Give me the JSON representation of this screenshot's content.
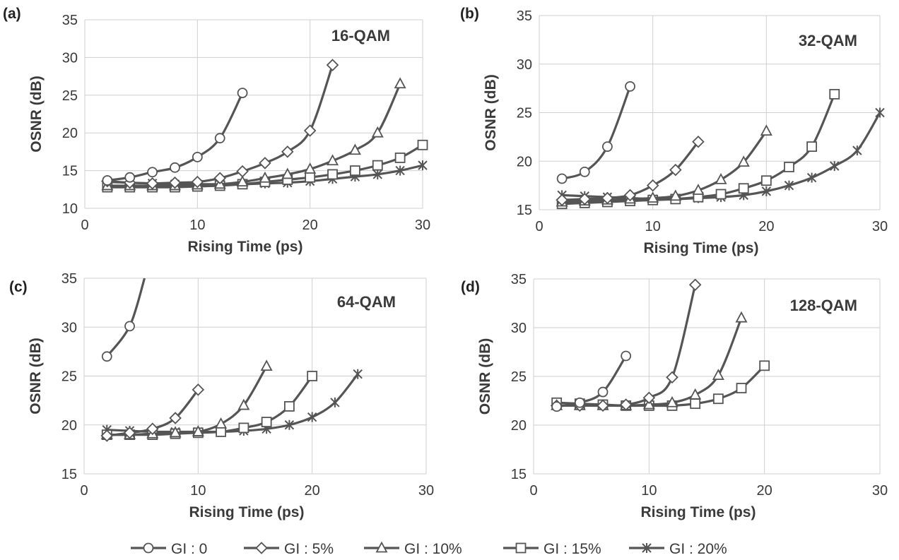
{
  "chart_data": [
    {
      "type": "line",
      "panel": "(a)",
      "title": "16-QAM",
      "xlabel": "Rising Time (ps)",
      "ylabel": "OSNR (dB)",
      "xlim": [
        0,
        30
      ],
      "ylim": [
        10,
        35
      ],
      "xticks": [
        0,
        10,
        20,
        30
      ],
      "yticks": [
        10,
        15,
        20,
        25,
        30,
        35
      ],
      "grid": true,
      "series": [
        {
          "name": "GI : 0",
          "marker": "circle",
          "x": [
            2,
            4,
            6,
            8,
            10,
            12,
            14
          ],
          "y": [
            13.7,
            14.1,
            14.8,
            15.4,
            16.8,
            19.3,
            25.3
          ]
        },
        {
          "name": "GI : 5%",
          "marker": "diamond",
          "x": [
            2,
            4,
            6,
            8,
            10,
            12,
            14,
            16,
            18,
            20,
            22
          ],
          "y": [
            13.6,
            13.4,
            13.3,
            13.4,
            13.5,
            14.0,
            14.9,
            16.0,
            17.5,
            20.3,
            29.0
          ]
        },
        {
          "name": "GI : 10%",
          "marker": "triangle",
          "x": [
            2,
            4,
            6,
            8,
            10,
            12,
            14,
            16,
            18,
            20,
            22,
            24,
            26,
            28
          ],
          "y": [
            13.0,
            13.0,
            13.0,
            13.0,
            13.1,
            13.2,
            13.5,
            14.0,
            14.5,
            15.2,
            16.3,
            17.7,
            20.0,
            26.5
          ]
        },
        {
          "name": "GI : 15%",
          "marker": "square",
          "x": [
            2,
            4,
            6,
            8,
            10,
            12,
            14,
            16,
            18,
            20,
            22,
            24,
            26,
            28,
            30
          ],
          "y": [
            12.8,
            12.8,
            12.8,
            12.8,
            12.9,
            13.0,
            13.2,
            13.5,
            13.8,
            14.1,
            14.5,
            15.0,
            15.7,
            16.7,
            18.4
          ]
        },
        {
          "name": "GI : 20%",
          "marker": "star",
          "x": [
            2,
            4,
            6,
            8,
            10,
            12,
            14,
            16,
            18,
            20,
            22,
            24,
            26,
            28,
            30
          ],
          "y": [
            13.5,
            13.4,
            13.3,
            13.2,
            13.2,
            13.2,
            13.2,
            13.3,
            13.4,
            13.6,
            13.9,
            14.2,
            14.5,
            15.0,
            15.7
          ]
        }
      ]
    },
    {
      "type": "line",
      "panel": "(b)",
      "title": "32-QAM",
      "xlabel": "Rising Time (ps)",
      "ylabel": "OSNR (dB)",
      "xlim": [
        0,
        30
      ],
      "ylim": [
        15,
        35
      ],
      "xticks": [
        0,
        10,
        20,
        30
      ],
      "yticks": [
        15,
        20,
        25,
        30,
        35
      ],
      "grid": true,
      "series": [
        {
          "name": "GI : 0",
          "marker": "circle",
          "x": [
            2,
            4,
            6,
            8
          ],
          "y": [
            18.2,
            18.9,
            21.5,
            27.7
          ]
        },
        {
          "name": "GI : 5%",
          "marker": "diamond",
          "x": [
            2,
            4,
            6,
            8,
            10,
            12,
            14
          ],
          "y": [
            16.0,
            16.1,
            16.2,
            16.5,
            17.5,
            19.1,
            22.0
          ]
        },
        {
          "name": "GI : 10%",
          "marker": "triangle",
          "x": [
            2,
            4,
            6,
            8,
            10,
            12,
            14,
            16,
            18,
            20
          ],
          "y": [
            15.8,
            15.9,
            16.0,
            16.1,
            16.2,
            16.4,
            17.0,
            18.1,
            19.9,
            23.1
          ]
        },
        {
          "name": "GI : 15%",
          "marker": "square",
          "x": [
            2,
            4,
            6,
            8,
            10,
            12,
            14,
            16,
            18,
            20,
            22,
            24,
            26
          ],
          "y": [
            15.6,
            15.7,
            15.8,
            15.9,
            16.0,
            16.1,
            16.3,
            16.6,
            17.2,
            18.0,
            19.4,
            21.5,
            26.9
          ]
        },
        {
          "name": "GI : 20%",
          "marker": "star",
          "x": [
            2,
            4,
            6,
            8,
            10,
            12,
            14,
            16,
            18,
            20,
            22,
            24,
            26,
            28,
            30
          ],
          "y": [
            16.5,
            16.4,
            16.3,
            16.2,
            16.1,
            16.1,
            16.2,
            16.3,
            16.5,
            16.9,
            17.5,
            18.3,
            19.5,
            21.1,
            25.0
          ]
        }
      ]
    },
    {
      "type": "line",
      "panel": "(c)",
      "title": "64-QAM",
      "xlabel": "Rising Time (ps)",
      "ylabel": "OSNR (dB)",
      "xlim": [
        0,
        30
      ],
      "ylim": [
        15,
        35
      ],
      "xticks": [
        0,
        10,
        20,
        30
      ],
      "yticks": [
        15,
        20,
        25,
        30,
        35
      ],
      "grid": true,
      "series": [
        {
          "name": "GI : 0",
          "marker": "circle",
          "x": [
            2,
            4,
            5.3
          ],
          "y": [
            27.0,
            30.1,
            35.0
          ],
          "marker_count": 2
        },
        {
          "name": "GI : 5%",
          "marker": "diamond",
          "x": [
            2,
            4,
            6,
            8,
            10
          ],
          "y": [
            18.9,
            19.2,
            19.6,
            20.7,
            23.6
          ]
        },
        {
          "name": "GI : 10%",
          "marker": "triangle",
          "x": [
            2,
            4,
            6,
            8,
            10,
            12,
            14,
            16
          ],
          "y": [
            19.0,
            19.0,
            19.1,
            19.2,
            19.3,
            20.1,
            22.0,
            26.0
          ]
        },
        {
          "name": "GI : 15%",
          "marker": "square",
          "x": [
            2,
            4,
            6,
            8,
            10,
            12,
            14,
            16,
            18,
            20
          ],
          "y": [
            19.0,
            19.0,
            19.0,
            19.1,
            19.2,
            19.3,
            19.7,
            20.3,
            21.9,
            25.0
          ]
        },
        {
          "name": "GI : 20%",
          "marker": "star",
          "x": [
            2,
            4,
            6,
            8,
            10,
            12,
            14,
            16,
            18,
            20,
            22,
            24
          ],
          "y": [
            19.5,
            19.4,
            19.3,
            19.3,
            19.3,
            19.3,
            19.4,
            19.6,
            20.0,
            20.8,
            22.3,
            25.2
          ]
        }
      ]
    },
    {
      "type": "line",
      "panel": "(d)",
      "title": "128-QAM",
      "xlabel": "Rising Time (ps)",
      "ylabel": "OSNR (dB)",
      "xlim": [
        0,
        30
      ],
      "ylim": [
        15,
        35
      ],
      "xticks": [
        0,
        10,
        20,
        30
      ],
      "yticks": [
        15,
        20,
        25,
        30,
        35
      ],
      "grid": true,
      "series": [
        {
          "name": "GI : 0",
          "marker": "circle",
          "x": [
            2,
            4,
            6,
            8
          ],
          "y": [
            21.9,
            22.3,
            23.4,
            27.1
          ]
        },
        {
          "name": "GI : 5%",
          "marker": "diamond",
          "x": [
            2,
            4,
            6,
            8,
            10,
            12,
            14
          ],
          "y": [
            22.0,
            22.0,
            22.0,
            22.1,
            22.8,
            24.9,
            34.4
          ]
        },
        {
          "name": "GI : 10%",
          "marker": "triangle",
          "x": [
            2,
            4,
            6,
            8,
            10,
            12,
            14,
            16,
            18
          ],
          "y": [
            22.0,
            22.0,
            22.0,
            22.0,
            22.1,
            22.3,
            23.1,
            25.1,
            31.0
          ]
        },
        {
          "name": "GI : 15%",
          "marker": "square",
          "x": [
            2,
            4,
            6,
            8,
            10,
            12,
            14,
            16,
            18,
            20
          ],
          "y": [
            22.3,
            22.2,
            22.1,
            22.0,
            22.0,
            22.0,
            22.2,
            22.7,
            23.8,
            26.1
          ]
        }
      ]
    }
  ],
  "legend": {
    "placement": "bottom",
    "entries": [
      {
        "label": "GI : 0",
        "marker": "circle"
      },
      {
        "label": "GI : 5%",
        "marker": "diamond"
      },
      {
        "label": "GI : 10%",
        "marker": "triangle"
      },
      {
        "label": "GI : 15%",
        "marker": "square"
      },
      {
        "label": "GI : 20%",
        "marker": "star"
      }
    ]
  },
  "colors": {
    "line": "#555555",
    "grid": "#cfcfcf",
    "marker_fill": "#ffffff"
  }
}
